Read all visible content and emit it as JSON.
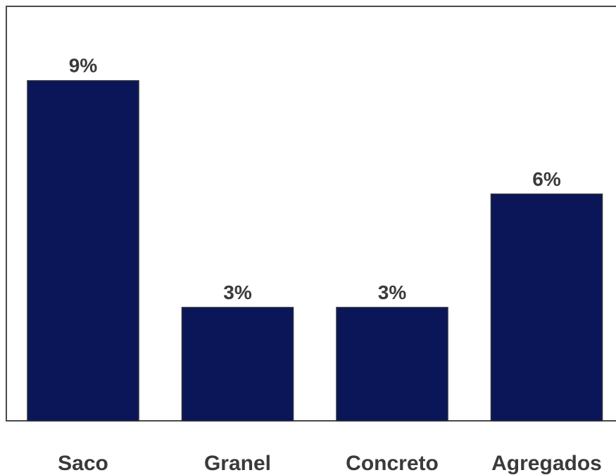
{
  "chart_data": {
    "type": "bar",
    "categories": [
      "Saco",
      "Granel",
      "Concreto",
      "Agregados"
    ],
    "values": [
      9,
      3,
      3,
      6
    ],
    "value_labels": [
      "9%",
      "3%",
      "3%",
      "6%"
    ],
    "unit": "%",
    "title": "",
    "xlabel": "",
    "ylabel": "",
    "ylim": [
      0,
      10
    ],
    "grid": false,
    "legend": "none",
    "bar_color": "#0a1657"
  }
}
